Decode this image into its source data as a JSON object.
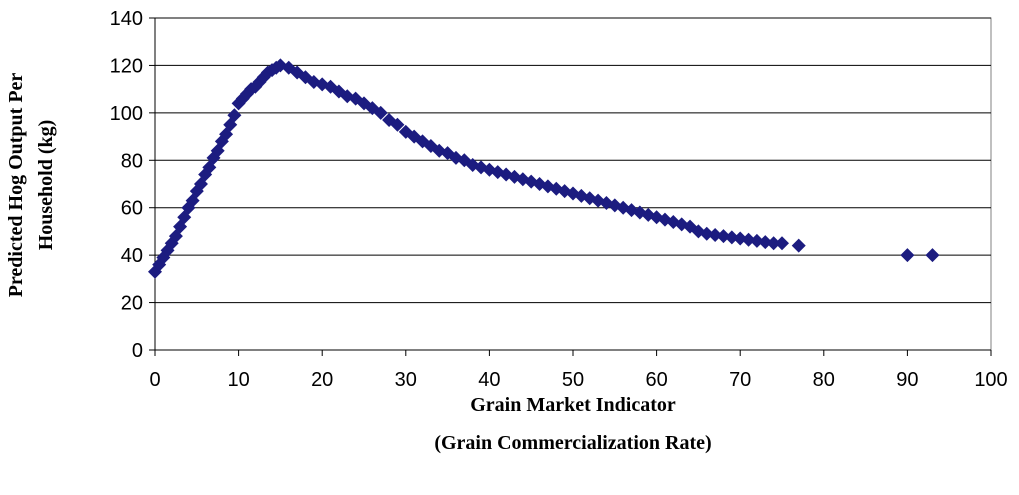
{
  "chart_data": {
    "type": "scatter",
    "ylabel": [
      "Predicted Hog Output Per",
      "Household (kg)"
    ],
    "xlabel": [
      "Grain Market Indicator",
      "(Grain Commercialization Rate)"
    ],
    "color": "#1c1c80",
    "grid": true,
    "xlim": [
      0,
      100
    ],
    "xticks": [
      0,
      10,
      20,
      30,
      40,
      50,
      60,
      70,
      80,
      90,
      100
    ],
    "ylim": [
      0,
      140
    ],
    "yticks": [
      0,
      20,
      40,
      60,
      80,
      100,
      120,
      140
    ],
    "x": [
      0,
      0.5,
      1,
      1.5,
      2,
      2.5,
      3,
      3.5,
      4,
      4.5,
      5,
      5.5,
      6,
      6.5,
      7,
      7.5,
      8,
      8.5,
      9,
      9.5,
      10,
      10.5,
      11,
      11.5,
      12,
      12.5,
      13,
      13.5,
      14,
      14.5,
      15,
      16,
      17,
      18,
      19,
      20,
      21,
      22,
      23,
      24,
      25,
      26,
      27,
      28,
      29,
      30,
      31,
      32,
      33,
      34,
      35,
      36,
      37,
      38,
      39,
      40,
      41,
      42,
      43,
      44,
      45,
      46,
      47,
      48,
      49,
      50,
      51,
      52,
      53,
      54,
      55,
      56,
      57,
      58,
      59,
      60,
      61,
      62,
      63,
      64,
      65,
      66,
      67,
      68,
      69,
      70,
      71,
      72,
      73,
      74,
      75,
      77,
      90,
      93
    ],
    "values": [
      33,
      36,
      39,
      42,
      45,
      48,
      52,
      56,
      60,
      63,
      67,
      70,
      74,
      77,
      81,
      84,
      88,
      91,
      95,
      99,
      104,
      106,
      108,
      110,
      111,
      113,
      115,
      117,
      118,
      119,
      120,
      119,
      117,
      115,
      113,
      112,
      111,
      109,
      107,
      106,
      104,
      102,
      100,
      97,
      95,
      92,
      90,
      88,
      86,
      84,
      83,
      81,
      80,
      78,
      77,
      76,
      75,
      74,
      73,
      72,
      71,
      70,
      69,
      68,
      67,
      66,
      65,
      64,
      63,
      62,
      61,
      60,
      59,
      58,
      57,
      56,
      55,
      54,
      53,
      52,
      50,
      49,
      48.5,
      48,
      47.5,
      47,
      46.5,
      46,
      45.5,
      45,
      45,
      44,
      40,
      40
    ]
  }
}
